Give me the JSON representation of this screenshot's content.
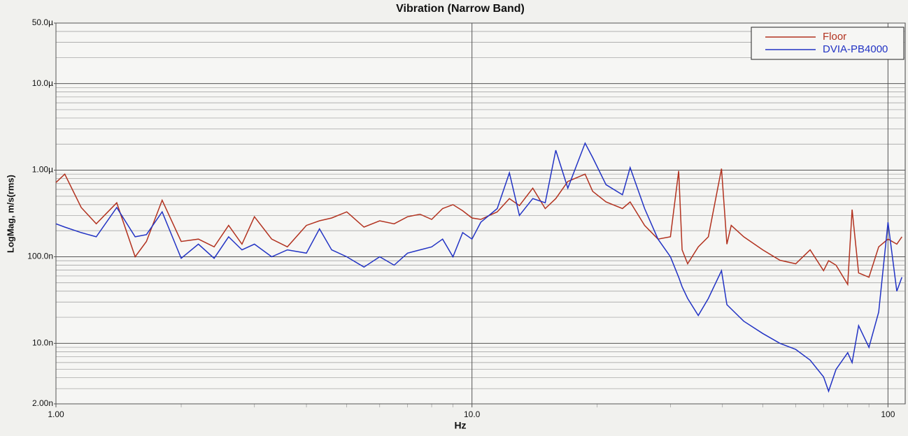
{
  "chart_data": {
    "type": "line",
    "title": "Vibration (Narrow Band)",
    "x_label": "Hz",
    "y_label": "LogMag, m/s(rms)",
    "log_x": true,
    "log_y": true,
    "grid": true,
    "minor_grid": true,
    "legend": "top-right",
    "xlim": [
      1,
      110
    ],
    "xticks": [
      {
        "value": 1,
        "label": "1.00"
      },
      {
        "value": 10,
        "label": "10.0"
      },
      100
    ],
    "ylim": [
      2e-09,
      5e-05
    ],
    "yticks": [
      {
        "value": 5e-05,
        "label": "50.0µ"
      },
      {
        "value": 1e-05,
        "label": "10.0µ"
      },
      {
        "value": 1e-06,
        "label": "1.00µ"
      },
      {
        "value": 1e-07,
        "label": "100.0n"
      },
      {
        "value": 1e-08,
        "label": "10.0n"
      },
      {
        "value": 2e-09,
        "label": "2.00n"
      }
    ],
    "x": [
      1,
      1.05,
      1.15,
      1.25,
      1.4,
      1.55,
      1.65,
      1.8,
      2,
      2.2,
      2.4,
      2.6,
      2.8,
      3,
      3.3,
      3.6,
      4,
      4.3,
      4.6,
      5,
      5.5,
      6,
      6.5,
      7,
      7.5,
      8,
      8.5,
      9,
      9.5,
      10,
      10.5,
      11.5,
      12.3,
      13,
      14,
      15,
      15.9,
      17,
      18.7,
      19.5,
      21,
      23,
      24,
      26,
      28,
      30,
      31.4,
      32,
      33,
      35,
      37,
      39.8,
      41,
      42,
      45,
      50,
      55,
      60,
      65,
      70,
      72,
      75,
      80,
      82,
      85,
      90,
      95,
      100,
      105,
      108
    ],
    "series": [
      {
        "name": "Floor",
        "color": "#b2321f",
        "values": [
          7.2e-07,
          9e-07,
          3.7e-07,
          2.4e-07,
          4.2e-07,
          1e-07,
          1.5e-07,
          4.5e-07,
          1.5e-07,
          1.6e-07,
          1.3e-07,
          2.3e-07,
          1.4e-07,
          2.9e-07,
          1.6e-07,
          1.3e-07,
          2.3e-07,
          2.6e-07,
          2.8e-07,
          3.3e-07,
          2.2e-07,
          2.6e-07,
          2.4e-07,
          2.9e-07,
          3.1e-07,
          2.7e-07,
          3.6e-07,
          4e-07,
          3.4e-07,
          2.8e-07,
          2.7e-07,
          3.3e-07,
          4.7e-07,
          3.9e-07,
          6.2e-07,
          3.6e-07,
          4.7e-07,
          7.4e-07,
          9e-07,
          5.7e-07,
          4.3e-07,
          3.6e-07,
          4.3e-07,
          2.3e-07,
          1.6e-07,
          1.7e-07,
          9.8e-07,
          1.2e-07,
          8.3e-08,
          1.3e-07,
          1.7e-07,
          1.04e-06,
          1.4e-07,
          2.3e-07,
          1.7e-07,
          1.2e-07,
          9.1e-08,
          8.3e-08,
          1.2e-07,
          6.9e-08,
          9e-08,
          8e-08,
          4.8e-08,
          3.5e-07,
          6.5e-08,
          5.8e-08,
          1.3e-07,
          1.6e-07,
          1.4e-07,
          1.7e-07
        ]
      },
      {
        "name": "DVIA-PB4000",
        "color": "#2233c4",
        "values": [
          2.4e-07,
          2.2e-07,
          1.9e-07,
          1.7e-07,
          3.7e-07,
          1.7e-07,
          1.8e-07,
          3.3e-07,
          9.6e-08,
          1.4e-07,
          9.6e-08,
          1.7e-07,
          1.2e-07,
          1.4e-07,
          1e-07,
          1.2e-07,
          1.1e-07,
          2.1e-07,
          1.2e-07,
          1e-07,
          7.6e-08,
          1e-07,
          8e-08,
          1.1e-07,
          1.2e-07,
          1.3e-07,
          1.6e-07,
          1e-07,
          1.9e-07,
          1.6e-07,
          2.5e-07,
          3.6e-07,
          9.3e-07,
          3e-07,
          4.7e-07,
          4.2e-07,
          1.7e-06,
          6.2e-07,
          2.05e-06,
          1.4e-06,
          6.8e-07,
          5.2e-07,
          1.07e-06,
          3.6e-07,
          1.6e-07,
          1e-07,
          5.8e-08,
          4.5e-08,
          3.3e-08,
          2.1e-08,
          3.3e-08,
          6.9e-08,
          2.8e-08,
          2.5e-08,
          1.8e-08,
          1.3e-08,
          1e-08,
          8.5e-09,
          6.4e-09,
          4.1e-09,
          2.8e-09,
          5e-09,
          7.8e-09,
          6e-09,
          1.6e-08,
          9e-09,
          2.3e-08,
          2.5e-07,
          4e-08,
          5.8e-08
        ]
      }
    ]
  }
}
